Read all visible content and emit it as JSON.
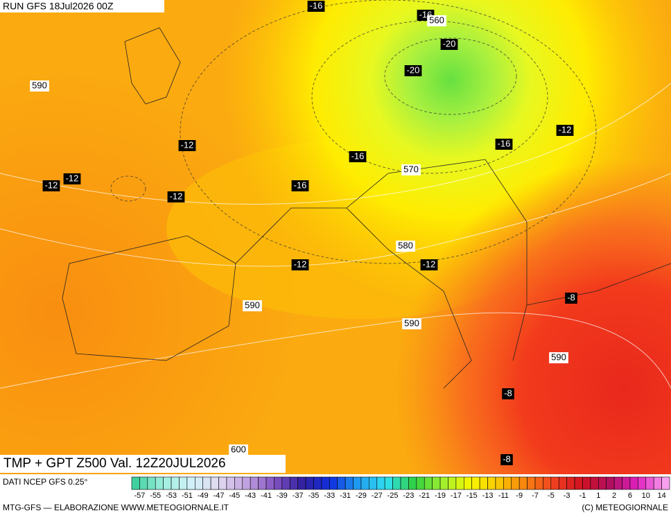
{
  "header": {
    "run": "RUN GFS 18Jul2026 00Z",
    "product": "TMP + GPT Z500 Val. 12Z20JUL2026"
  },
  "map_labels": [
    -16,
    -16,
    560,
    -20,
    -20,
    590,
    -12,
    -12,
    -16,
    -16,
    570,
    -12,
    -12,
    -16,
    -12,
    580,
    -12,
    -12,
    -8,
    590,
    590,
    590,
    -8,
    600,
    -8
  ],
  "legend": {
    "source": "DATI NCEP GFS 0.25°",
    "values": [
      -57,
      -55,
      -53,
      -51,
      -49,
      -47,
      -45,
      -43,
      -41,
      -39,
      -37,
      -35,
      -33,
      -31,
      -29,
      -27,
      -25,
      -23,
      -21,
      -19,
      -17,
      -15,
      -13,
      -11,
      -9,
      -7,
      -5,
      -3,
      -1,
      1,
      2,
      6,
      10,
      14
    ]
  },
  "footer": {
    "left": "MTG-GFS — ELABORAZIONE WWW.METEOGIORNALE.IT",
    "right": "(C) METEOGIORNALE"
  }
}
